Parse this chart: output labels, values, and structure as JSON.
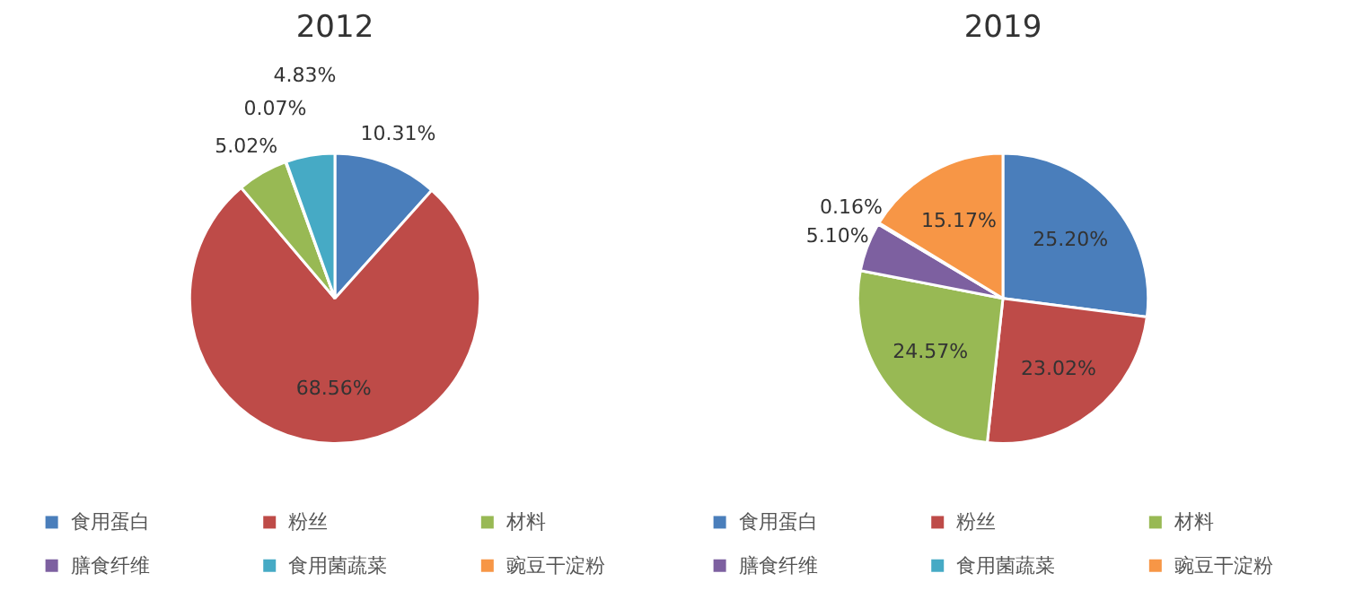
{
  "chart_data": [
    {
      "type": "pie",
      "title": "2012",
      "categories": [
        "食用蛋白",
        "粉丝",
        "材料",
        "膳食纤维",
        "食用菌蔬菜",
        "豌豆干淀粉"
      ],
      "values": [
        10.31,
        68.56,
        5.02,
        0.07,
        4.83,
        null
      ],
      "value_labels": [
        "10.31%",
        "68.56%",
        "5.02%",
        "0.07%",
        "4.83%",
        null
      ],
      "colors": [
        "#4a7ebb",
        "#be4b48",
        "#98b954",
        "#7d60a0",
        "#46aac5",
        "#f79646"
      ],
      "legend": "bottom"
    },
    {
      "type": "pie",
      "title": "2019",
      "categories": [
        "食用蛋白",
        "粉丝",
        "材料",
        "膳食纤维",
        "食用菌蔬菜",
        "豌豆干淀粉"
      ],
      "values": [
        25.2,
        23.02,
        24.57,
        5.1,
        0.16,
        15.17
      ],
      "value_labels": [
        "25.20%",
        "23.02%",
        "24.57%",
        "5.10%",
        "0.16%",
        "15.17%"
      ],
      "colors": [
        "#4a7ebb",
        "#be4b48",
        "#98b954",
        "#7d60a0",
        "#46aac5",
        "#f79646"
      ],
      "legend": "bottom"
    }
  ]
}
